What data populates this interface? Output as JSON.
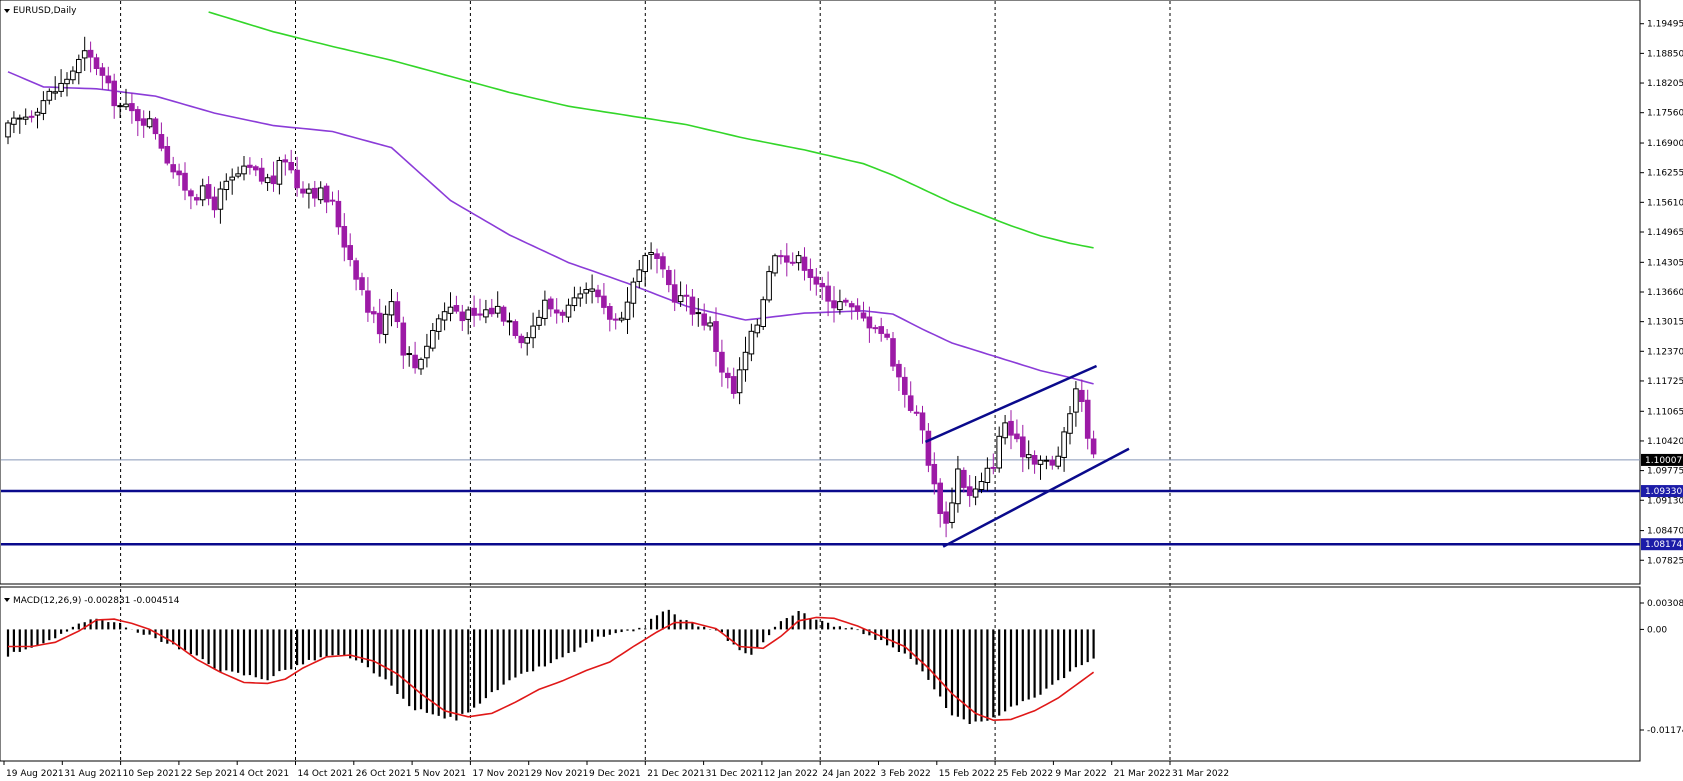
{
  "window": {
    "symbol_title": "EURUSD,Daily",
    "indicator_title": "MACD(12,26,9) -0.002831 -0.004514"
  },
  "colors": {
    "bull_candle": "#ffffff",
    "bear_candle": "#9c1aa6",
    "ma_fast": "#8b3cd8",
    "ma_slow": "#33d629",
    "trendline": "#0a0a8c",
    "level_line": "#0a0a8c",
    "macd_signal": "#e01818",
    "macd_hist": "#000000",
    "current_price_line": "#8898b8"
  },
  "chart_data": [
    {
      "type": "candlestick",
      "title": "EURUSD,Daily",
      "ylim": [
        1.077,
        1.1975
      ],
      "y_ticks": [
        "1.19495",
        "1.18850",
        "1.18205",
        "1.17560",
        "1.16900",
        "1.16255",
        "1.15610",
        "1.14965",
        "1.14305",
        "1.13660",
        "1.13015",
        "1.12370",
        "1.11725",
        "1.11065",
        "1.10420",
        "1.09775",
        "1.09130",
        "1.08470",
        "1.07825"
      ],
      "x_ticks": [
        "19 Aug 2021",
        "31 Aug 2021",
        "10 Sep 2021",
        "22 Sep 2021",
        "4 Oct 2021",
        "14 Oct 2021",
        "26 Oct 2021",
        "5 Nov 2021",
        "17 Nov 2021",
        "29 Nov 2021",
        "9 Dec 2021",
        "21 Dec 2021",
        "31 Dec 2021",
        "12 Jan 2022",
        "24 Jan 2022",
        "3 Feb 2022",
        "15 Feb 2022",
        "25 Feb 2022",
        "9 Mar 2022",
        "21 Mar 2022",
        "31 Mar 2022"
      ],
      "price_tags": [
        {
          "label": "1.10007",
          "value": 1.10007,
          "style": "current"
        },
        {
          "label": "1.09330",
          "value": 1.0933,
          "style": "level"
        },
        {
          "label": "1.08174",
          "value": 1.08174,
          "style": "level"
        }
      ],
      "horizontal_levels": [
        1.0933,
        1.08174
      ],
      "close_path": [
        [
          0,
          1.172
        ],
        [
          3,
          1.175
        ],
        [
          6,
          1.1785
        ],
        [
          9,
          1.1815
        ],
        [
          11,
          1.185
        ],
        [
          13,
          1.188
        ],
        [
          15,
          1.186
        ],
        [
          17,
          1.1805
        ],
        [
          19,
          1.177
        ],
        [
          21,
          1.1755
        ],
        [
          23,
          1.1745
        ],
        [
          25,
          1.172
        ],
        [
          27,
          1.166
        ],
        [
          29,
          1.1605
        ],
        [
          31,
          1.1585
        ],
        [
          33,
          1.158
        ],
        [
          35,
          1.156
        ],
        [
          37,
          1.1595
        ],
        [
          39,
          1.162
        ],
        [
          41,
          1.163
        ],
        [
          43,
          1.161
        ],
        [
          45,
          1.161
        ],
        [
          47,
          1.166
        ],
        [
          49,
          1.16
        ],
        [
          51,
          1.1595
        ],
        [
          53,
          1.158
        ],
        [
          55,
          1.1555
        ],
        [
          57,
          1.1475
        ],
        [
          59,
          1.141
        ],
        [
          61,
          1.133
        ],
        [
          63,
          1.129
        ],
        [
          65,
          1.136
        ],
        [
          67,
          1.1245
        ],
        [
          69,
          1.1205
        ],
        [
          71,
          1.1255
        ],
        [
          73,
          1.131
        ],
        [
          75,
          1.1335
        ],
        [
          77,
          1.132
        ],
        [
          79,
          1.1305
        ],
        [
          81,
          1.1325
        ],
        [
          83,
          1.133
        ],
        [
          85,
          1.1305
        ],
        [
          87,
          1.127
        ],
        [
          89,
          1.1295
        ],
        [
          91,
          1.134
        ],
        [
          93,
          1.1325
        ],
        [
          95,
          1.133
        ],
        [
          97,
          1.1345
        ],
        [
          99,
          1.1365
        ],
        [
          101,
          1.132
        ],
        [
          103,
          1.1305
        ],
        [
          105,
          1.1345
        ],
        [
          107,
          1.1425
        ],
        [
          109,
          1.1445
        ],
        [
          111,
          1.14
        ],
        [
          113,
          1.136
        ],
        [
          115,
          1.1345
        ],
        [
          117,
          1.132
        ],
        [
          119,
          1.129
        ],
        [
          121,
          1.12
        ],
        [
          123,
          1.1145
        ],
        [
          125,
          1.123
        ],
        [
          127,
          1.13
        ],
        [
          129,
          1.142
        ],
        [
          131,
          1.146
        ],
        [
          133,
          1.1435
        ],
        [
          135,
          1.143
        ],
        [
          137,
          1.139
        ],
        [
          139,
          1.134
        ],
        [
          141,
          1.1355
        ],
        [
          143,
          1.1325
        ],
        [
          145,
          1.1305
        ],
        [
          147,
          1.13
        ],
        [
          149,
          1.126
        ],
        [
          151,
          1.118
        ],
        [
          153,
          1.112
        ],
        [
          155,
          1.1065
        ],
        [
          157,
          1.094
        ],
        [
          159,
          1.086
        ],
        [
          161,
          1.098
        ],
        [
          163,
          1.092
        ],
        [
          165,
          1.0945
        ],
        [
          167,
          1.1
        ],
        [
          169,
          1.1085
        ],
        [
          171,
          1.103
        ],
        [
          173,
          1.1015
        ],
        [
          175,
          1.1
        ],
        [
          177,
          1.0985
        ],
        [
          179,
          1.1045
        ],
        [
          181,
          1.1165
        ],
        [
          183,
          1.1065
        ],
        [
          184,
          1.1001
        ]
      ],
      "series": [
        {
          "name": "",
          "type": "line",
          "color_key": "ma_fast",
          "points": [
            [
              0,
              1.1845
            ],
            [
              6,
              1.1812
            ],
            [
              15,
              1.1808
            ],
            [
              25,
              1.1792
            ],
            [
              35,
              1.1755
            ],
            [
              45,
              1.1728
            ],
            [
              55,
              1.1715
            ],
            [
              65,
              1.168
            ],
            [
              75,
              1.1565
            ],
            [
              85,
              1.149
            ],
            [
              95,
              1.143
            ],
            [
              105,
              1.1385
            ],
            [
              115,
              1.1335
            ],
            [
              125,
              1.1305
            ],
            [
              135,
              1.132
            ],
            [
              145,
              1.1325
            ],
            [
              150,
              1.1318
            ],
            [
              155,
              1.1285
            ],
            [
              160,
              1.1255
            ],
            [
              165,
              1.1235
            ],
            [
              170,
              1.1215
            ],
            [
              175,
              1.1195
            ],
            [
              180,
              1.118
            ],
            [
              184,
              1.1166
            ]
          ]
        },
        {
          "name": "",
          "type": "line",
          "color_key": "ma_slow",
          "points": [
            [
              34,
              1.1975
            ],
            [
              45,
              1.1932
            ],
            [
              55,
              1.19
            ],
            [
              65,
              1.187
            ],
            [
              75,
              1.1835
            ],
            [
              85,
              1.18
            ],
            [
              95,
              1.177
            ],
            [
              105,
              1.175
            ],
            [
              115,
              1.173
            ],
            [
              125,
              1.17
            ],
            [
              135,
              1.1675
            ],
            [
              145,
              1.1645
            ],
            [
              150,
              1.162
            ],
            [
              155,
              1.159
            ],
            [
              160,
              1.156
            ],
            [
              165,
              1.1535
            ],
            [
              170,
              1.151
            ],
            [
              175,
              1.1488
            ],
            [
              180,
              1.1472
            ],
            [
              184,
              1.1462
            ]
          ]
        }
      ],
      "trendlines": [
        {
          "from": [
            155.5,
            1.104
          ],
          "to": [
            184.5,
            1.1205
          ]
        },
        {
          "from": [
            158.5,
            1.0812
          ],
          "to": [
            190,
            1.1025
          ]
        }
      ]
    },
    {
      "type": "macd",
      "title": "MACD(12,26,9) -0.002831 -0.004514",
      "macd": -0.002831,
      "signal": -0.004514,
      "ylim": [
        -0.01174,
        0.003082
      ],
      "y_ticks": [
        "0.003082",
        "0.00",
        "-0.01174"
      ],
      "hist_path": [
        [
          0,
          -0.003
        ],
        [
          4,
          -0.002
        ],
        [
          8,
          -0.0012
        ],
        [
          10,
          -0.0002
        ],
        [
          12,
          0.0008
        ],
        [
          14,
          0.0012
        ],
        [
          16,
          0.0012
        ],
        [
          18,
          0.0008
        ],
        [
          20,
          0.0004
        ],
        [
          22,
          -0.0005
        ],
        [
          24,
          -0.0008
        ],
        [
          28,
          -0.0018
        ],
        [
          32,
          -0.0032
        ],
        [
          36,
          -0.0048
        ],
        [
          40,
          -0.0053
        ],
        [
          44,
          -0.0058
        ],
        [
          46,
          -0.005
        ],
        [
          48,
          -0.0045
        ],
        [
          52,
          -0.0035
        ],
        [
          56,
          -0.003
        ],
        [
          60,
          -0.004
        ],
        [
          64,
          -0.006
        ],
        [
          68,
          -0.009
        ],
        [
          72,
          -0.01
        ],
        [
          76,
          -0.0105
        ],
        [
          80,
          -0.0085
        ],
        [
          84,
          -0.0065
        ],
        [
          88,
          -0.005
        ],
        [
          92,
          -0.004
        ],
        [
          96,
          -0.0025
        ],
        [
          100,
          -0.001
        ],
        [
          104,
          -0.0005
        ],
        [
          108,
          0.0003
        ],
        [
          110,
          0.0018
        ],
        [
          112,
          0.0022
        ],
        [
          114,
          0.0012
        ],
        [
          118,
          0.0002
        ],
        [
          121,
          -0.0005
        ],
        [
          124,
          -0.0025
        ],
        [
          126,
          -0.0028
        ],
        [
          128,
          -0.0015
        ],
        [
          131,
          0.001
        ],
        [
          134,
          0.0022
        ],
        [
          136,
          0.0012
        ],
        [
          140,
          0.0005
        ],
        [
          144,
          0.0001
        ],
        [
          146,
          -0.0008
        ],
        [
          150,
          -0.002
        ],
        [
          154,
          -0.004
        ],
        [
          158,
          -0.008
        ],
        [
          160,
          -0.01
        ],
        [
          163,
          -0.011
        ],
        [
          166,
          -0.0108
        ],
        [
          170,
          -0.009
        ],
        [
          174,
          -0.008
        ],
        [
          178,
          -0.006
        ],
        [
          182,
          -0.004
        ],
        [
          184,
          -0.0035
        ]
      ],
      "signal_path": [
        [
          0,
          -0.002
        ],
        [
          4,
          -0.002
        ],
        [
          8,
          -0.0015
        ],
        [
          12,
          -0.0002
        ],
        [
          15,
          0.0011
        ],
        [
          18,
          0.0012
        ],
        [
          21,
          0.0007
        ],
        [
          24,
          0.0
        ],
        [
          28,
          -0.0015
        ],
        [
          32,
          -0.0035
        ],
        [
          36,
          -0.005
        ],
        [
          40,
          -0.0062
        ],
        [
          44,
          -0.0063
        ],
        [
          47,
          -0.0058
        ],
        [
          50,
          -0.0045
        ],
        [
          54,
          -0.0032
        ],
        [
          58,
          -0.003
        ],
        [
          62,
          -0.0037
        ],
        [
          66,
          -0.0052
        ],
        [
          70,
          -0.0075
        ],
        [
          74,
          -0.0095
        ],
        [
          78,
          -0.0102
        ],
        [
          82,
          -0.0098
        ],
        [
          86,
          -0.0085
        ],
        [
          90,
          -0.007
        ],
        [
          94,
          -0.006
        ],
        [
          98,
          -0.0048
        ],
        [
          102,
          -0.0038
        ],
        [
          106,
          -0.002
        ],
        [
          110,
          -0.0003
        ],
        [
          113,
          0.0008
        ],
        [
          116,
          0.0008
        ],
        [
          120,
          0.0001
        ],
        [
          124,
          -0.002
        ],
        [
          128,
          -0.0022
        ],
        [
          131,
          -0.0008
        ],
        [
          134,
          0.001
        ],
        [
          137,
          0.0014
        ],
        [
          140,
          0.0013
        ],
        [
          144,
          0.0004
        ],
        [
          148,
          -0.0008
        ],
        [
          152,
          -0.002
        ],
        [
          156,
          -0.0045
        ],
        [
          160,
          -0.0075
        ],
        [
          164,
          -0.0098
        ],
        [
          167,
          -0.0106
        ],
        [
          170,
          -0.0105
        ],
        [
          174,
          -0.0095
        ],
        [
          178,
          -0.008
        ],
        [
          182,
          -0.006
        ],
        [
          184,
          -0.005
        ]
      ]
    }
  ]
}
